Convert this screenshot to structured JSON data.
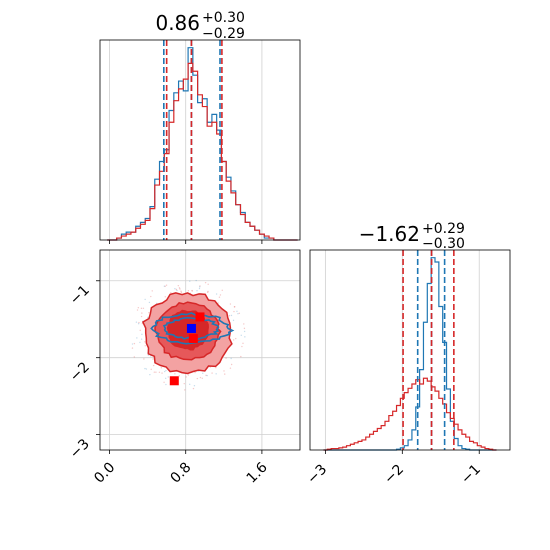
{
  "chart_data": [
    {
      "type": "histogram",
      "panel": "param1-marginal",
      "title": {
        "median": "0.86",
        "plus": "+0.30",
        "minus": "−0.29"
      },
      "xlim": [
        -0.1,
        2.0
      ],
      "xticks": [
        "0.0",
        "0.8",
        "1.6"
      ],
      "xtick_values": [
        0.0,
        0.8,
        1.6
      ],
      "bin_centers": [
        0.0,
        0.05,
        0.1,
        0.15,
        0.2,
        0.25,
        0.3,
        0.35,
        0.4,
        0.45,
        0.5,
        0.55,
        0.6,
        0.65,
        0.7,
        0.75,
        0.8,
        0.85,
        0.9,
        0.95,
        1.0,
        1.05,
        1.1,
        1.15,
        1.2,
        1.25,
        1.3,
        1.35,
        1.4,
        1.45,
        1.5,
        1.55,
        1.6,
        1.65,
        1.7,
        1.75,
        1.8,
        1.85,
        1.9,
        1.95
      ],
      "series": [
        {
          "color": "#1f77b4",
          "values": [
            0,
            0,
            1,
            3,
            4,
            4,
            7,
            9,
            11,
            17,
            31,
            40,
            46,
            66,
            75,
            81,
            76,
            98,
            84,
            70,
            72,
            60,
            64,
            56,
            40,
            32,
            25,
            18,
            14,
            9,
            7,
            5,
            3,
            1,
            1,
            0,
            0,
            0,
            0,
            0
          ]
        },
        {
          "color": "#d62728",
          "values": [
            0,
            0,
            1,
            2,
            3,
            4,
            6,
            8,
            10,
            16,
            28,
            35,
            44,
            60,
            71,
            77,
            82,
            90,
            86,
            74,
            68,
            58,
            60,
            54,
            40,
            30,
            24,
            18,
            13,
            9,
            7,
            5,
            3,
            2,
            1,
            0,
            0,
            0,
            0,
            0
          ]
        }
      ],
      "quantile_lines": [
        {
          "color": "#1f77b4",
          "values": [
            0.57,
            0.86,
            1.16
          ]
        },
        {
          "color": "#d62728",
          "values": [
            0.6,
            0.86,
            1.18
          ]
        }
      ]
    },
    {
      "type": "contour",
      "panel": "joint",
      "xlim": [
        -0.1,
        2.0
      ],
      "ylim": [
        -3.2,
        -0.6
      ],
      "xticks": [
        "0.0",
        "0.8",
        "1.6"
      ],
      "xtick_values": [
        0.0,
        0.8,
        1.6
      ],
      "yticks": [
        "−1",
        "−2",
        "−3"
      ],
      "ytick_values": [
        -1,
        -2,
        -3
      ],
      "red_levels": [
        {
          "center": [
            0.82,
            -1.68
          ],
          "radii": [
            0.46,
            0.52
          ],
          "fill": "#f3a2a2"
        },
        {
          "center": [
            0.82,
            -1.66
          ],
          "radii": [
            0.33,
            0.37
          ],
          "fill": "#e6585a"
        },
        {
          "center": [
            0.82,
            -1.64
          ],
          "radii": [
            0.21,
            0.25
          ],
          "fill": "#d62728"
        }
      ],
      "blue_levels": [
        {
          "center": [
            0.86,
            -1.62
          ],
          "radii": [
            0.4,
            0.19
          ]
        },
        {
          "center": [
            0.86,
            -1.62
          ],
          "radii": [
            0.28,
            0.13
          ]
        }
      ],
      "red_markers": [
        [
          0.86,
          -1.62
        ],
        [
          0.95,
          -1.47
        ],
        [
          0.88,
          -1.75
        ],
        [
          0.68,
          -2.3
        ]
      ],
      "blue_marker": [
        0.86,
        -1.62
      ]
    },
    {
      "type": "histogram",
      "panel": "param2-marginal",
      "title": {
        "median": "−1.62",
        "plus": "+0.29",
        "minus": "−0.30"
      },
      "xlim": [
        -3.2,
        -0.6
      ],
      "xticks": [
        "−3",
        "−2",
        "−1"
      ],
      "xtick_values": [
        -3,
        -2,
        -1
      ],
      "bin_centers": [
        -3.0,
        -2.95,
        -2.9,
        -2.85,
        -2.8,
        -2.75,
        -2.7,
        -2.65,
        -2.6,
        -2.55,
        -2.5,
        -2.45,
        -2.4,
        -2.35,
        -2.3,
        -2.25,
        -2.2,
        -2.15,
        -2.1,
        -2.05,
        -2.0,
        -1.95,
        -1.9,
        -1.85,
        -1.8,
        -1.75,
        -1.7,
        -1.65,
        -1.6,
        -1.55,
        -1.5,
        -1.45,
        -1.4,
        -1.35,
        -1.3,
        -1.25,
        -1.2,
        -1.15,
        -1.1,
        -1.05,
        -1.0,
        -0.95,
        -0.9,
        -0.85,
        -0.8
      ],
      "series": [
        {
          "color": "#1f77b4",
          "values": [
            0,
            0,
            0,
            0,
            0,
            0,
            0,
            0,
            0,
            0,
            0,
            0,
            0,
            0,
            0,
            0,
            0,
            0,
            0,
            1,
            3,
            6,
            14,
            28,
            60,
            112,
            178,
            232,
            268,
            262,
            200,
            150,
            85,
            40,
            16,
            6,
            2,
            1,
            0,
            0,
            0,
            0,
            0,
            0,
            0
          ]
        },
        {
          "color": "#d62728",
          "values": [
            0,
            1,
            2,
            2,
            3,
            4,
            6,
            8,
            10,
            12,
            14,
            18,
            22,
            26,
            30,
            34,
            40,
            48,
            54,
            62,
            72,
            80,
            86,
            92,
            98,
            92,
            100,
            96,
            88,
            82,
            72,
            64,
            52,
            44,
            36,
            28,
            22,
            18,
            12,
            10,
            6,
            4,
            2,
            1,
            0
          ]
        }
      ],
      "quantile_lines": [
        {
          "color": "#1f77b4",
          "values": [
            -1.8,
            -1.62,
            -1.45
          ]
        },
        {
          "color": "#d62728",
          "values": [
            -1.99,
            -1.62,
            -1.33
          ]
        }
      ]
    }
  ]
}
